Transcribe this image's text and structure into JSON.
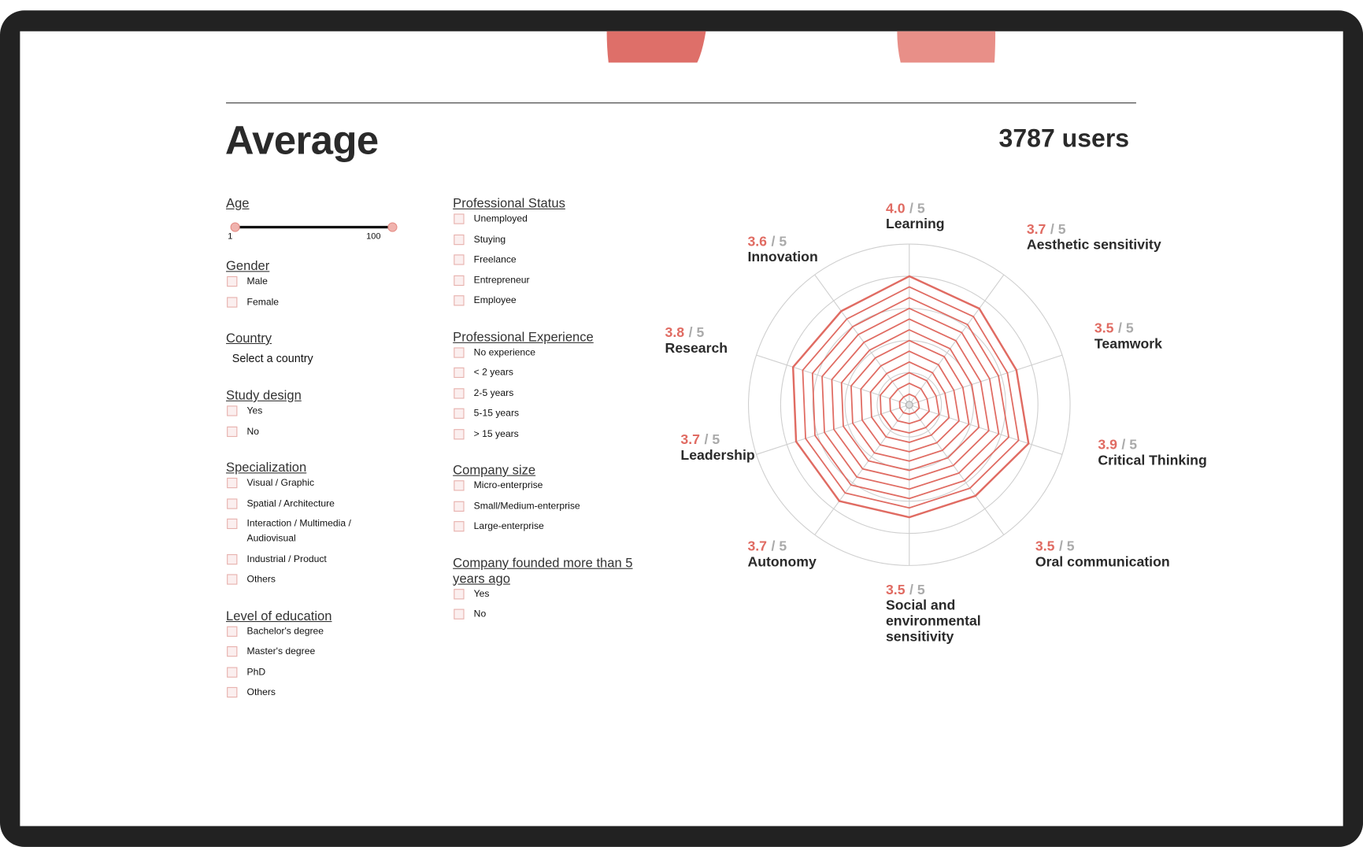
{
  "header": {
    "title": "Average",
    "users": "3787 users"
  },
  "filters": {
    "columns": [
      [
        {
          "heading": "Age",
          "slider": {
            "min": 1,
            "max": 100
          }
        },
        {
          "heading": "Gender",
          "options": [
            "Male",
            "Female"
          ]
        },
        {
          "heading": "Country",
          "select": "Select a country"
        },
        {
          "heading": "Study design",
          "options": [
            "Yes",
            "No"
          ]
        },
        {
          "heading": "Specialization",
          "options": [
            "Visual / Graphic",
            "Spatial / Architecture",
            "Interaction / Multimedia / Audiovisual",
            "Industrial / Product",
            "Others"
          ]
        },
        {
          "heading": "Level of education",
          "options": [
            "Bachelor's degree",
            "Master's degree",
            "PhD",
            "Others"
          ]
        }
      ],
      [
        {
          "heading": "Professional Status",
          "options": [
            "Unemployed",
            "Stuying",
            "Freelance",
            "Entrepreneur",
            "Employee"
          ]
        },
        {
          "heading": "Professional Experience",
          "options": [
            "No experience",
            "< 2 years",
            "2-5 years",
            "5-15 years",
            "> 15 years"
          ]
        },
        {
          "heading": "Company size",
          "options": [
            "Micro-enterprise",
            "Small/Medium-enterprise",
            "Large-enterprise"
          ]
        },
        {
          "heading": "Company founded more than 5 years ago",
          "options": [
            "Yes",
            "No"
          ]
        }
      ]
    ]
  },
  "chart_data": {
    "type": "radar",
    "categories": [
      "Learning",
      "Aesthetic sensitivity",
      "Teamwork",
      "Critical Thinking",
      "Oral communication",
      "Social and environmental sensitivity",
      "Autonomy",
      "Leadership",
      "Research",
      "Innovation"
    ],
    "values": [
      4.0,
      3.7,
      3.5,
      3.9,
      3.5,
      3.5,
      3.7,
      3.7,
      3.8,
      3.6
    ],
    "value_labels": [
      "4.0",
      "3.7",
      "3.5",
      "3.9",
      "3.5",
      "3.5",
      "3.7",
      "3.7",
      "3.8",
      "3.6"
    ],
    "rlim": [
      0,
      5
    ],
    "rticks": [
      1,
      2,
      3,
      4,
      5
    ],
    "scale_label": {
      "value": 5,
      "label": "/ 5"
    },
    "color": "#e06b62"
  }
}
